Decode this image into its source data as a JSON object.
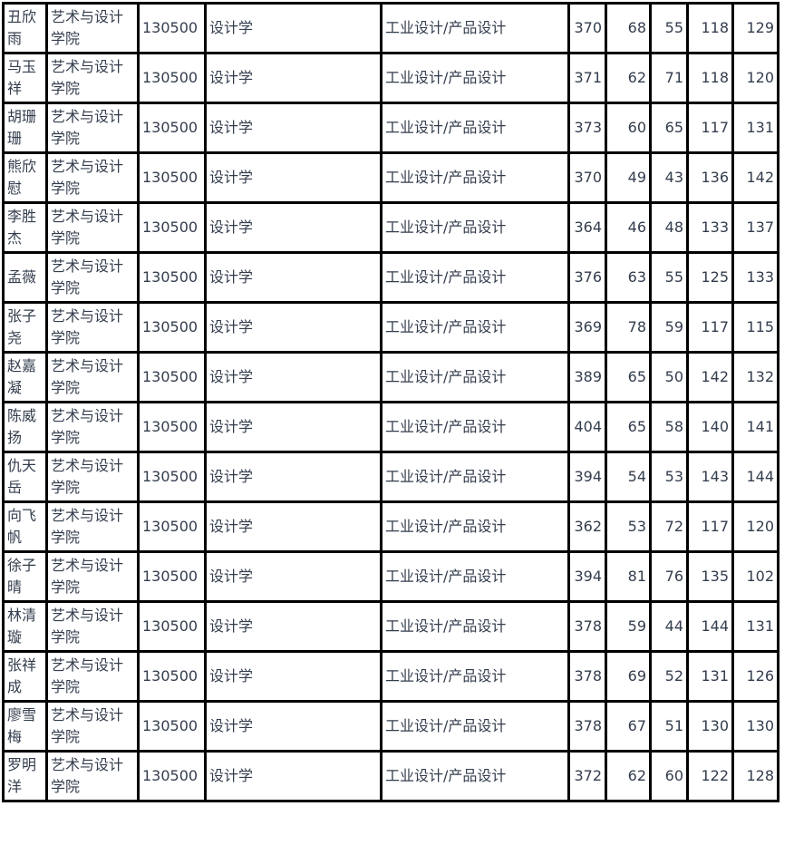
{
  "table": {
    "rows": [
      [
        "丑欣雨",
        "艺术与设计学院",
        "130500",
        "设计学",
        "工业设计/产品设计",
        "370",
        "68",
        "55",
        "118",
        "129"
      ],
      [
        "马玉祥",
        "艺术与设计学院",
        "130500",
        "设计学",
        "工业设计/产品设计",
        "371",
        "62",
        "71",
        "118",
        "120"
      ],
      [
        "胡珊珊",
        "艺术与设计学院",
        "130500",
        "设计学",
        "工业设计/产品设计",
        "373",
        "60",
        "65",
        "117",
        "131"
      ],
      [
        "熊欣慰",
        "艺术与设计学院",
        "130500",
        "设计学",
        "工业设计/产品设计",
        "370",
        "49",
        "43",
        "136",
        "142"
      ],
      [
        "李胜杰",
        "艺术与设计学院",
        "130500",
        "设计学",
        "工业设计/产品设计",
        "364",
        "46",
        "48",
        "133",
        "137"
      ],
      [
        "孟薇",
        "艺术与设计学院",
        "130500",
        "设计学",
        "工业设计/产品设计",
        "376",
        "63",
        "55",
        "125",
        "133"
      ],
      [
        "张子尧",
        "艺术与设计学院",
        "130500",
        "设计学",
        "工业设计/产品设计",
        "369",
        "78",
        "59",
        "117",
        "115"
      ],
      [
        "赵嘉凝",
        "艺术与设计学院",
        "130500",
        "设计学",
        "工业设计/产品设计",
        "389",
        "65",
        "50",
        "142",
        "132"
      ],
      [
        "陈威扬",
        "艺术与设计学院",
        "130500",
        "设计学",
        "工业设计/产品设计",
        "404",
        "65",
        "58",
        "140",
        "141"
      ],
      [
        "仇天岳",
        "艺术与设计学院",
        "130500",
        "设计学",
        "工业设计/产品设计",
        "394",
        "54",
        "53",
        "143",
        "144"
      ],
      [
        "向飞帆",
        "艺术与设计学院",
        "130500",
        "设计学",
        "工业设计/产品设计",
        "362",
        "53",
        "72",
        "117",
        "120"
      ],
      [
        "徐子晴",
        "艺术与设计学院",
        "130500",
        "设计学",
        "工业设计/产品设计",
        "394",
        "81",
        "76",
        "135",
        "102"
      ],
      [
        "林清璇",
        "艺术与设计学院",
        "130500",
        "设计学",
        "工业设计/产品设计",
        "378",
        "59",
        "44",
        "144",
        "131"
      ],
      [
        "张祥成",
        "艺术与设计学院",
        "130500",
        "设计学",
        "工业设计/产品设计",
        "378",
        "69",
        "52",
        "131",
        "126"
      ],
      [
        "廖雪梅",
        "艺术与设计学院",
        "130500",
        "设计学",
        "工业设计/产品设计",
        "378",
        "67",
        "51",
        "130",
        "130"
      ],
      [
        "罗明洋",
        "艺术与设计学院",
        "130500",
        "设计学",
        "工业设计/产品设计",
        "372",
        "62",
        "60",
        "122",
        "128"
      ]
    ]
  }
}
